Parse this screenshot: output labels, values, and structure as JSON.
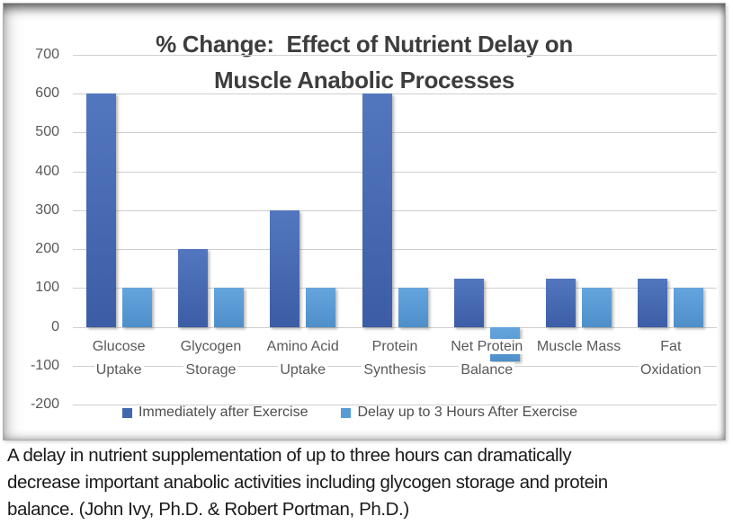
{
  "chart": {
    "title_line1": "% Change:  Effect of Nutrient Delay on",
    "title_line2": "Muscle Anabolic Processes"
  },
  "chart_data": {
    "type": "bar",
    "title": "% Change:  Effect of Nutrient Delay on Muscle Anabolic Processes",
    "categories": [
      "Glucose Uptake",
      "Glycogen Storage",
      "Amino Acid Uptake",
      "Protein Synthesis",
      "Net Protein Balance",
      "Muscle Mass",
      "Fat Oxidation"
    ],
    "category_label_lines": [
      [
        "Glucose",
        "Uptake"
      ],
      [
        "Glycogen",
        "Storage"
      ],
      [
        "Amino Acid",
        "Uptake"
      ],
      [
        "Protein",
        "Synthesis"
      ],
      [
        "Net Protein",
        "Balance"
      ],
      [
        "Muscle Mass"
      ],
      [
        "Fat",
        "Oxidation"
      ]
    ],
    "series": [
      {
        "name": "Immediately after Exercise",
        "color": "#4067b0",
        "color_top": "#5377bf",
        "color_bottom": "#3c5da6",
        "values": [
          600,
          200,
          300,
          600,
          125,
          125,
          125
        ]
      },
      {
        "name": "Delay up to 3 Hours After Exercise",
        "color": "#559bd5",
        "color_top": "#65a5de",
        "color_bottom": "#4e8fca",
        "values": [
          100,
          100,
          100,
          100,
          -90,
          100,
          100
        ]
      }
    ],
    "ylim": [
      -200,
      700
    ],
    "yticks": [
      700,
      600,
      500,
      400,
      300,
      200,
      100,
      0,
      -100,
      -200
    ],
    "grid": true,
    "legend_position": "bottom"
  },
  "caption": {
    "lines": [
      "A delay in nutrient supplementation of up to three hours can dramatically",
      "decrease important anabolic activities including glycogen storage and protein",
      "balance. (John Ivy, Ph.D. & Robert Portman, Ph.D.)"
    ]
  },
  "colors": {
    "gridline": "#cfcfcf",
    "axis_text": "#595959",
    "title_text": "#3d3d3d",
    "caption_text": "#1a1a1a",
    "legend_text": "#4d4d4d"
  }
}
